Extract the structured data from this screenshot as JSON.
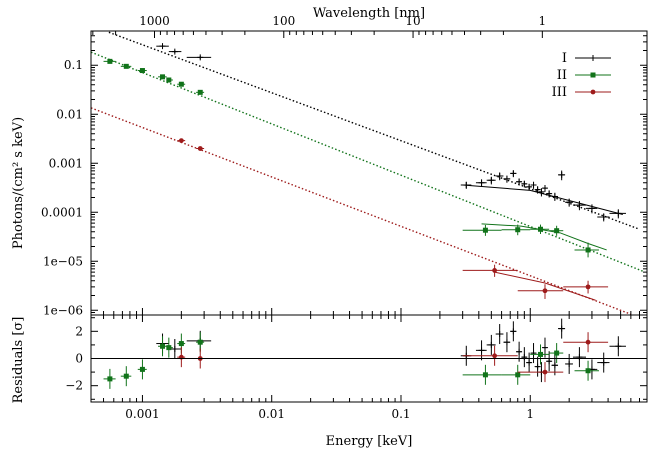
{
  "chart_data": {
    "type": "scatter",
    "x_scale": "log",
    "y_scale": "log",
    "xlabel": "Energy [keV]",
    "top_xlabel": "Wavelength [nm]",
    "ylabel_main": "Photons/(cm² s keV)",
    "ylabel_resid": "Residuals [σ]",
    "xlim": [
      0.0004,
      8
    ],
    "ylim": [
      8e-07,
      0.5
    ],
    "resid_ylim": [
      -3.2,
      3.2
    ],
    "x_ticks": [
      {
        "value": 0.001,
        "label": "0.001"
      },
      {
        "value": 0.01,
        "label": "0.01"
      },
      {
        "value": 0.1,
        "label": "0.1"
      },
      {
        "value": 1,
        "label": "1"
      }
    ],
    "top_ticks": [
      {
        "value": 1000,
        "label": "1000"
      },
      {
        "value": 100,
        "label": "100"
      },
      {
        "value": 10,
        "label": "10"
      },
      {
        "value": 1,
        "label": "1"
      }
    ],
    "y_ticks": [
      {
        "value": 0.1,
        "label": "0.1"
      },
      {
        "value": 0.01,
        "label": "0.01"
      },
      {
        "value": 0.001,
        "label": "0.001"
      },
      {
        "value": 0.0001,
        "label": "0.0001"
      },
      {
        "value": 1e-05,
        "label": "1e−05"
      },
      {
        "value": 1e-06,
        "label": "1e−06"
      }
    ],
    "resid_ticks": [
      {
        "value": 2,
        "label": "2"
      },
      {
        "value": 0,
        "label": "0"
      },
      {
        "value": -2,
        "label": "−2"
      }
    ],
    "series": [
      {
        "name": "I",
        "color": "#000000",
        "marker": "plus",
        "model": {
          "x": [
            0.00055,
            7
          ],
          "y": [
            0.47,
            4.5e-05
          ]
        },
        "xray_model": {
          "x": [
            0.3,
            1,
            5.2
          ],
          "y": [
            0.00036,
            0.00028,
            9e-05
          ]
        },
        "points": [
          {
            "x": 0.00143,
            "y": 0.245,
            "xerr": [
              0.00128,
              0.0016
            ],
            "yerr": [
              0.23,
              0.26
            ],
            "r": 1.1
          },
          {
            "x": 0.00178,
            "y": 0.19,
            "xerr": [
              0.0016,
              0.002
            ],
            "yerr": [
              0.178,
              0.202
            ],
            "r": 0.7
          },
          {
            "x": 0.0028,
            "y": 0.145,
            "xerr": [
              0.0022,
              0.0034
            ],
            "yerr": [
              0.135,
              0.155
            ],
            "r": 1.3
          },
          {
            "x": 0.32,
            "y": 0.00036,
            "xerr": [
              0.29,
              0.35
            ],
            "yerr": [
              0.0003,
              0.00042
            ],
            "r": 0.2
          },
          {
            "x": 0.42,
            "y": 0.0004,
            "xerr": [
              0.38,
              0.46
            ],
            "yerr": [
              0.00033,
              0.00047
            ],
            "r": 0.6
          },
          {
            "x": 0.5,
            "y": 0.00045,
            "xerr": [
              0.46,
              0.54
            ],
            "yerr": [
              0.00037,
              0.00053
            ],
            "r": 1.0
          },
          {
            "x": 0.58,
            "y": 0.00055,
            "xerr": [
              0.54,
              0.62
            ],
            "yerr": [
              0.00045,
              0.00065
            ],
            "r": 1.8
          },
          {
            "x": 0.66,
            "y": 0.00048,
            "xerr": [
              0.62,
              0.7
            ],
            "yerr": [
              0.0004,
              0.00056
            ],
            "r": 1.2
          },
          {
            "x": 0.74,
            "y": 0.00062,
            "xerr": [
              0.7,
              0.78
            ],
            "yerr": [
              0.00052,
              0.00072
            ],
            "r": 2.0
          },
          {
            "x": 0.82,
            "y": 0.00042,
            "xerr": [
              0.78,
              0.86
            ],
            "yerr": [
              0.00035,
              0.00049
            ],
            "r": 0.5
          },
          {
            "x": 0.9,
            "y": 0.00038,
            "xerr": [
              0.86,
              0.94
            ],
            "yerr": [
              0.00032,
              0.00044
            ],
            "r": 0.1
          },
          {
            "x": 0.98,
            "y": 0.00033,
            "xerr": [
              0.94,
              1.02
            ],
            "yerr": [
              0.00028,
              0.00038
            ],
            "r": -0.3
          },
          {
            "x": 1.06,
            "y": 0.00036,
            "xerr": [
              1.02,
              1.1
            ],
            "yerr": [
              0.0003,
              0.00042
            ],
            "r": 0.4
          },
          {
            "x": 1.14,
            "y": 0.00029,
            "xerr": [
              1.1,
              1.18
            ],
            "yerr": [
              0.00024,
              0.00034
            ],
            "r": -0.6
          },
          {
            "x": 1.22,
            "y": 0.00026,
            "xerr": [
              1.18,
              1.26
            ],
            "yerr": [
              0.00021,
              0.00031
            ],
            "r": -1.0
          },
          {
            "x": 1.3,
            "y": 0.00031,
            "xerr": [
              1.26,
              1.34
            ],
            "yerr": [
              0.00026,
              0.00036
            ],
            "r": 0.8
          },
          {
            "x": 1.4,
            "y": 0.00024,
            "xerr": [
              1.34,
              1.46
            ],
            "yerr": [
              0.0002,
              0.00028
            ],
            "r": -0.2
          },
          {
            "x": 1.55,
            "y": 0.00021,
            "xerr": [
              1.46,
              1.64
            ],
            "yerr": [
              0.00017,
              0.00025
            ],
            "r": -0.5
          },
          {
            "x": 1.75,
            "y": 0.00058,
            "xerr": [
              1.64,
              1.86
            ],
            "yerr": [
              0.00045,
              0.00071
            ],
            "r": 2.2
          },
          {
            "x": 2.0,
            "y": 0.00016,
            "xerr": [
              1.86,
              2.14
            ],
            "yerr": [
              0.00013,
              0.00019
            ],
            "r": -0.4
          },
          {
            "x": 2.4,
            "y": 0.00014,
            "xerr": [
              2.14,
              2.7
            ],
            "yerr": [
              0.00011,
              0.00017
            ],
            "r": 0.1
          },
          {
            "x": 3.0,
            "y": 0.00012,
            "xerr": [
              2.7,
              3.3
            ],
            "yerr": [
              9.5e-05,
              0.000145
            ],
            "r": -0.8
          },
          {
            "x": 3.7,
            "y": 8e-05,
            "xerr": [
              3.3,
              4.1
            ],
            "yerr": [
              6.5e-05,
              9.5e-05
            ],
            "r": -0.3
          },
          {
            "x": 4.8,
            "y": 9.5e-05,
            "xerr": [
              4.1,
              5.5
            ],
            "yerr": [
              7.5e-05,
              0.000115
            ],
            "r": 0.9
          }
        ]
      },
      {
        "name": "II",
        "color": "#11731a",
        "marker": "square",
        "model": {
          "x": [
            0.0004,
            7.5
          ],
          "y": [
            0.185,
            6.2e-06
          ]
        },
        "xray_model": {
          "x": [
            0.42,
            0.85,
            1.7,
            2.8,
            3.9
          ],
          "y": [
            5.8e-05,
            5.2e-05,
            3.8e-05,
            2.3e-05,
            1.7e-05
          ]
        },
        "points": [
          {
            "x": 0.00056,
            "y": 0.12,
            "xerr": [
              0.0005,
              0.00062
            ],
            "yerr": [
              0.112,
              0.128
            ],
            "r": -1.5
          },
          {
            "x": 0.00075,
            "y": 0.095,
            "xerr": [
              0.00068,
              0.00082
            ],
            "yerr": [
              0.089,
              0.101
            ],
            "r": -1.3
          },
          {
            "x": 0.001,
            "y": 0.078,
            "xerr": [
              0.00092,
              0.00108
            ],
            "yerr": [
              0.073,
              0.083
            ],
            "r": -0.8
          },
          {
            "x": 0.00143,
            "y": 0.058,
            "xerr": [
              0.00132,
              0.00154
            ],
            "yerr": [
              0.054,
              0.062
            ],
            "r": 0.9
          },
          {
            "x": 0.0016,
            "y": 0.05,
            "xerr": [
              0.00154,
              0.00172
            ],
            "yerr": [
              0.047,
              0.053
            ],
            "r": 0.8
          },
          {
            "x": 0.002,
            "y": 0.041,
            "xerr": [
              0.00186,
              0.00214
            ],
            "yerr": [
              0.038,
              0.044
            ],
            "r": 1.1
          },
          {
            "x": 0.0028,
            "y": 0.028,
            "xerr": [
              0.0026,
              0.003
            ],
            "yerr": [
              0.026,
              0.03
            ],
            "r": 1.2
          },
          {
            "x": 0.45,
            "y": 4.3e-05,
            "xerr": [
              0.3,
              0.6
            ],
            "yerr": [
              3.3e-05,
              5.5e-05
            ],
            "r": -1.2
          },
          {
            "x": 0.8,
            "y": 4.4e-05,
            "xerr": [
              0.6,
              1.0
            ],
            "yerr": [
              3.4e-05,
              5.6e-05
            ],
            "r": -1.2
          },
          {
            "x": 1.2,
            "y": 4.5e-05,
            "xerr": [
              1.0,
              1.4
            ],
            "yerr": [
              3.6e-05,
              5.6e-05
            ],
            "r": 0.3
          },
          {
            "x": 1.6,
            "y": 4.2e-05,
            "xerr": [
              1.4,
              1.8
            ],
            "yerr": [
              3.3e-05,
              5.3e-05
            ],
            "r": 0.4
          },
          {
            "x": 2.8,
            "y": 1.7e-05,
            "xerr": [
              2.2,
              3.4
            ],
            "yerr": [
              1.2e-05,
              2.4e-05
            ],
            "r": -0.9
          }
        ]
      },
      {
        "name": "III",
        "color": "#9e1b1b",
        "marker": "circle",
        "model": {
          "x": [
            0.0004,
            6
          ],
          "y": [
            0.0135,
            8.3e-07
          ]
        },
        "xray_model": {
          "x": [
            0.53,
            1.3,
            3.2
          ],
          "y": [
            6e-06,
            3.6e-06,
            1.6e-06
          ]
        },
        "points": [
          {
            "x": 0.002,
            "y": 0.0029,
            "xerr": [
              0.00186,
              0.00214
            ],
            "yerr": [
              0.0027,
              0.0031
            ],
            "r": 0.1
          },
          {
            "x": 0.0028,
            "y": 0.002,
            "xerr": [
              0.0026,
              0.003
            ],
            "yerr": [
              0.0018,
              0.0022
            ],
            "r": 0.0
          },
          {
            "x": 0.53,
            "y": 6.5e-06,
            "xerr": [
              0.3,
              0.8
            ],
            "yerr": [
              4.8e-06,
              8.5e-06
            ],
            "r": 0.2
          },
          {
            "x": 1.3,
            "y": 2.5e-06,
            "xerr": [
              0.8,
              1.8
            ],
            "yerr": [
              1.7e-06,
              3.4e-06
            ],
            "r": -1.0
          },
          {
            "x": 2.8,
            "y": 3e-06,
            "xerr": [
              1.8,
              4.0
            ],
            "yerr": [
              2.2e-06,
              4e-06
            ],
            "r": 1.2
          }
        ]
      }
    ]
  }
}
